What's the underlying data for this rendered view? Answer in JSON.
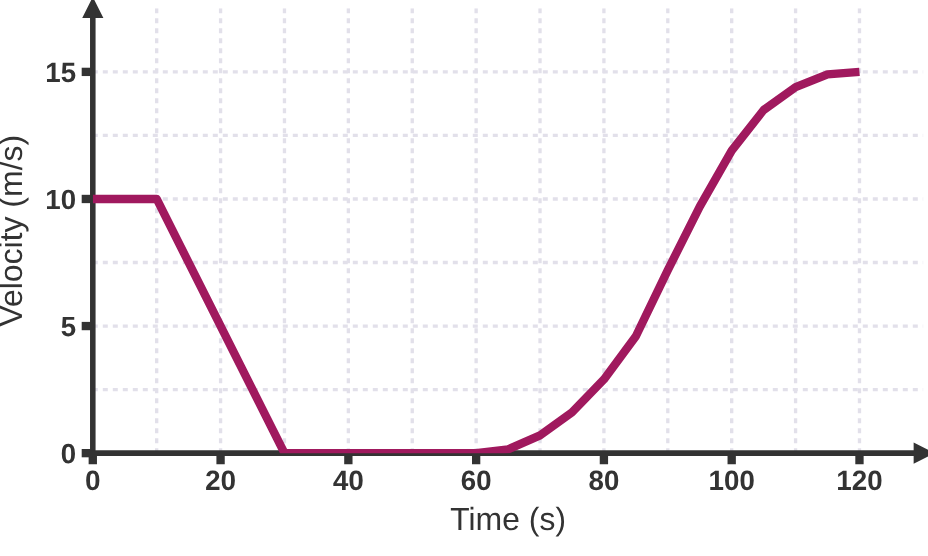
{
  "chart_data": {
    "type": "line",
    "xlabel": "Time (s)",
    "ylabel": "Velocity (m/s)",
    "series": [
      {
        "color": "#a0195e",
        "x": [
          0,
          10,
          30,
          60,
          65,
          70,
          75,
          80,
          85,
          90,
          95,
          100,
          105,
          110,
          115,
          120
        ],
        "values": [
          10,
          10,
          0,
          0,
          0.15,
          0.7,
          1.6,
          2.9,
          4.6,
          7.2,
          9.7,
          11.9,
          13.5,
          14.4,
          14.9,
          15
        ]
      }
    ],
    "xlim": [
      0,
      130
    ],
    "ylim": [
      0,
      17.5
    ],
    "xticks": [
      0,
      {
        "value": 10,
        "label": null
      },
      20,
      {
        "value": 30,
        "label": null
      },
      40,
      {
        "value": 50,
        "label": null
      },
      60,
      {
        "value": 70,
        "label": null
      },
      80,
      {
        "value": 90,
        "label": null
      },
      100,
      {
        "value": 110,
        "label": null
      },
      120
    ],
    "yticks": [
      0,
      {
        "value": 2.5,
        "label": null
      },
      5,
      {
        "value": 7.5,
        "label": null
      },
      10,
      {
        "value": 12.5,
        "label": null
      },
      15
    ],
    "grid": true,
    "marker": "none",
    "line_style": "solid"
  }
}
